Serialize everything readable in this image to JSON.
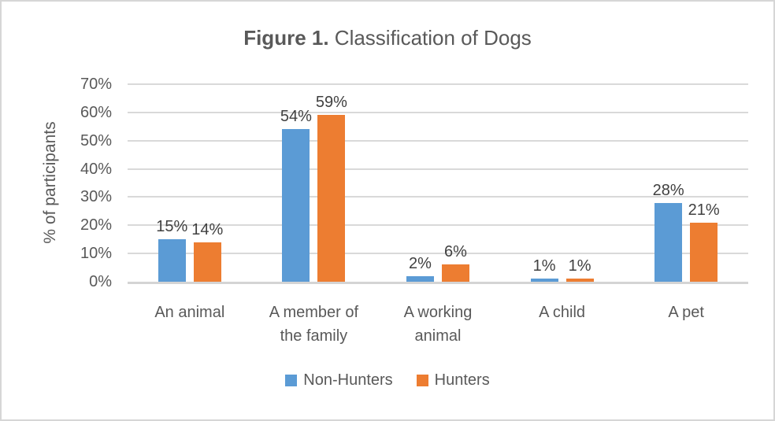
{
  "page": {
    "title_bold": "Figure 1.",
    "title_rest": " Classification of Dogs"
  },
  "chart_data": {
    "type": "bar",
    "title": "Figure 1. Classification of Dogs",
    "categories": [
      "An animal",
      "A member of the family",
      "A working animal",
      "A child",
      "A pet"
    ],
    "series": [
      {
        "name": "Non-Hunters",
        "color": "#5B9BD5",
        "values": [
          15,
          54,
          2,
          1,
          28
        ]
      },
      {
        "name": "Hunters",
        "color": "#ED7D31",
        "values": [
          14,
          59,
          6,
          1,
          21
        ]
      }
    ],
    "ylabel": "% of participants",
    "ylim": [
      0,
      70
    ],
    "ytick_step": 10,
    "ytick_suffix": "%",
    "data_labels": true,
    "data_label_suffix": "%",
    "grid": true,
    "legend_position": "bottom",
    "colors": {
      "gridline": "#d9d9d9",
      "axis_line": "#d4d4d4",
      "tick_text": "#595959",
      "data_label_text": "#404040",
      "title_text": "#595959",
      "border": "#d6d6d6"
    }
  }
}
